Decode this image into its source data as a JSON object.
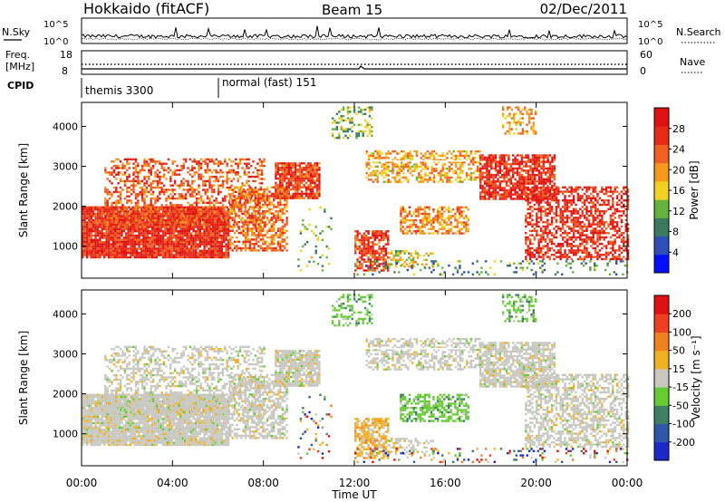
{
  "header": {
    "station": "Hokkaido (fitACF)",
    "beam": "Beam 15",
    "date": "02/Dec/2011"
  },
  "noise_panel": {
    "left_label": "N.Sky",
    "right_label": "N.Search",
    "tick_top": "10^5",
    "tick_bottom": "10^0"
  },
  "freq_panel": {
    "left_label_1": "Freq.",
    "left_label_2": "[MHz]",
    "left_ticks": [
      "18",
      "8"
    ],
    "right_ticks": [
      "60",
      "0"
    ],
    "right_label": "Nave"
  },
  "cpid_panel": {
    "label": "CPID",
    "modes": [
      {
        "name": "themis 3300",
        "start_hour": 0,
        "end_hour": 6
      },
      {
        "name": "normal (fast) 151",
        "start_hour": 6,
        "end_hour": 24
      }
    ]
  },
  "chart_data": [
    {
      "type": "heatmap",
      "name": "power",
      "ylabel": "Slant Range [km]",
      "ylim": [
        200,
        4600
      ],
      "yticks": [
        "1000",
        "2000",
        "3000",
        "4000"
      ],
      "colorbar": {
        "label": "Power [dB]",
        "levels": [
          "28",
          "24",
          "20",
          "16",
          "12",
          "8",
          "4"
        ],
        "colors": [
          "#0010ff",
          "#2f4fb8",
          "#3c7a60",
          "#66b33c",
          "#f2d21e",
          "#f59a1c",
          "#f06020",
          "#e82a18",
          "#e01010"
        ]
      }
    },
    {
      "type": "heatmap",
      "name": "velocity",
      "ylabel": "Slant Range [km]",
      "ylim": [
        200,
        4600
      ],
      "yticks": [
        "1000",
        "2000",
        "3000",
        "4000"
      ],
      "colorbar": {
        "label": "Velocity [m s⁻¹]",
        "levels": [
          "200",
          "100",
          "50",
          "15",
          "-15",
          "-50",
          "-100",
          "-200"
        ],
        "colors": [
          "#1c28c8",
          "#2f57a8",
          "#3f7f66",
          "#66cc33",
          "#c8c8c0",
          "#f0b020",
          "#f08020",
          "#f04020",
          "#e01010"
        ]
      }
    }
  ],
  "xaxis": {
    "label": "Time UT",
    "ticks": [
      "00:00",
      "04:00",
      "08:00",
      "12:00",
      "16:00",
      "20:00",
      "00:00"
    ]
  }
}
